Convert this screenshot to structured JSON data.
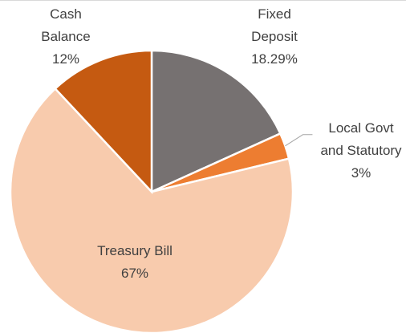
{
  "chart_data": {
    "type": "pie",
    "categories": [
      "Fixed Deposit",
      "Local Govt and Statutory",
      "Treasury Bill",
      "Cash Balance"
    ],
    "values": [
      18.29,
      3,
      67,
      12
    ],
    "value_labels": [
      "18.29%",
      "3%",
      "67%",
      "12%"
    ],
    "colors": [
      "#767171",
      "#ed7d31",
      "#f8cbad",
      "#c55a11"
    ]
  }
}
